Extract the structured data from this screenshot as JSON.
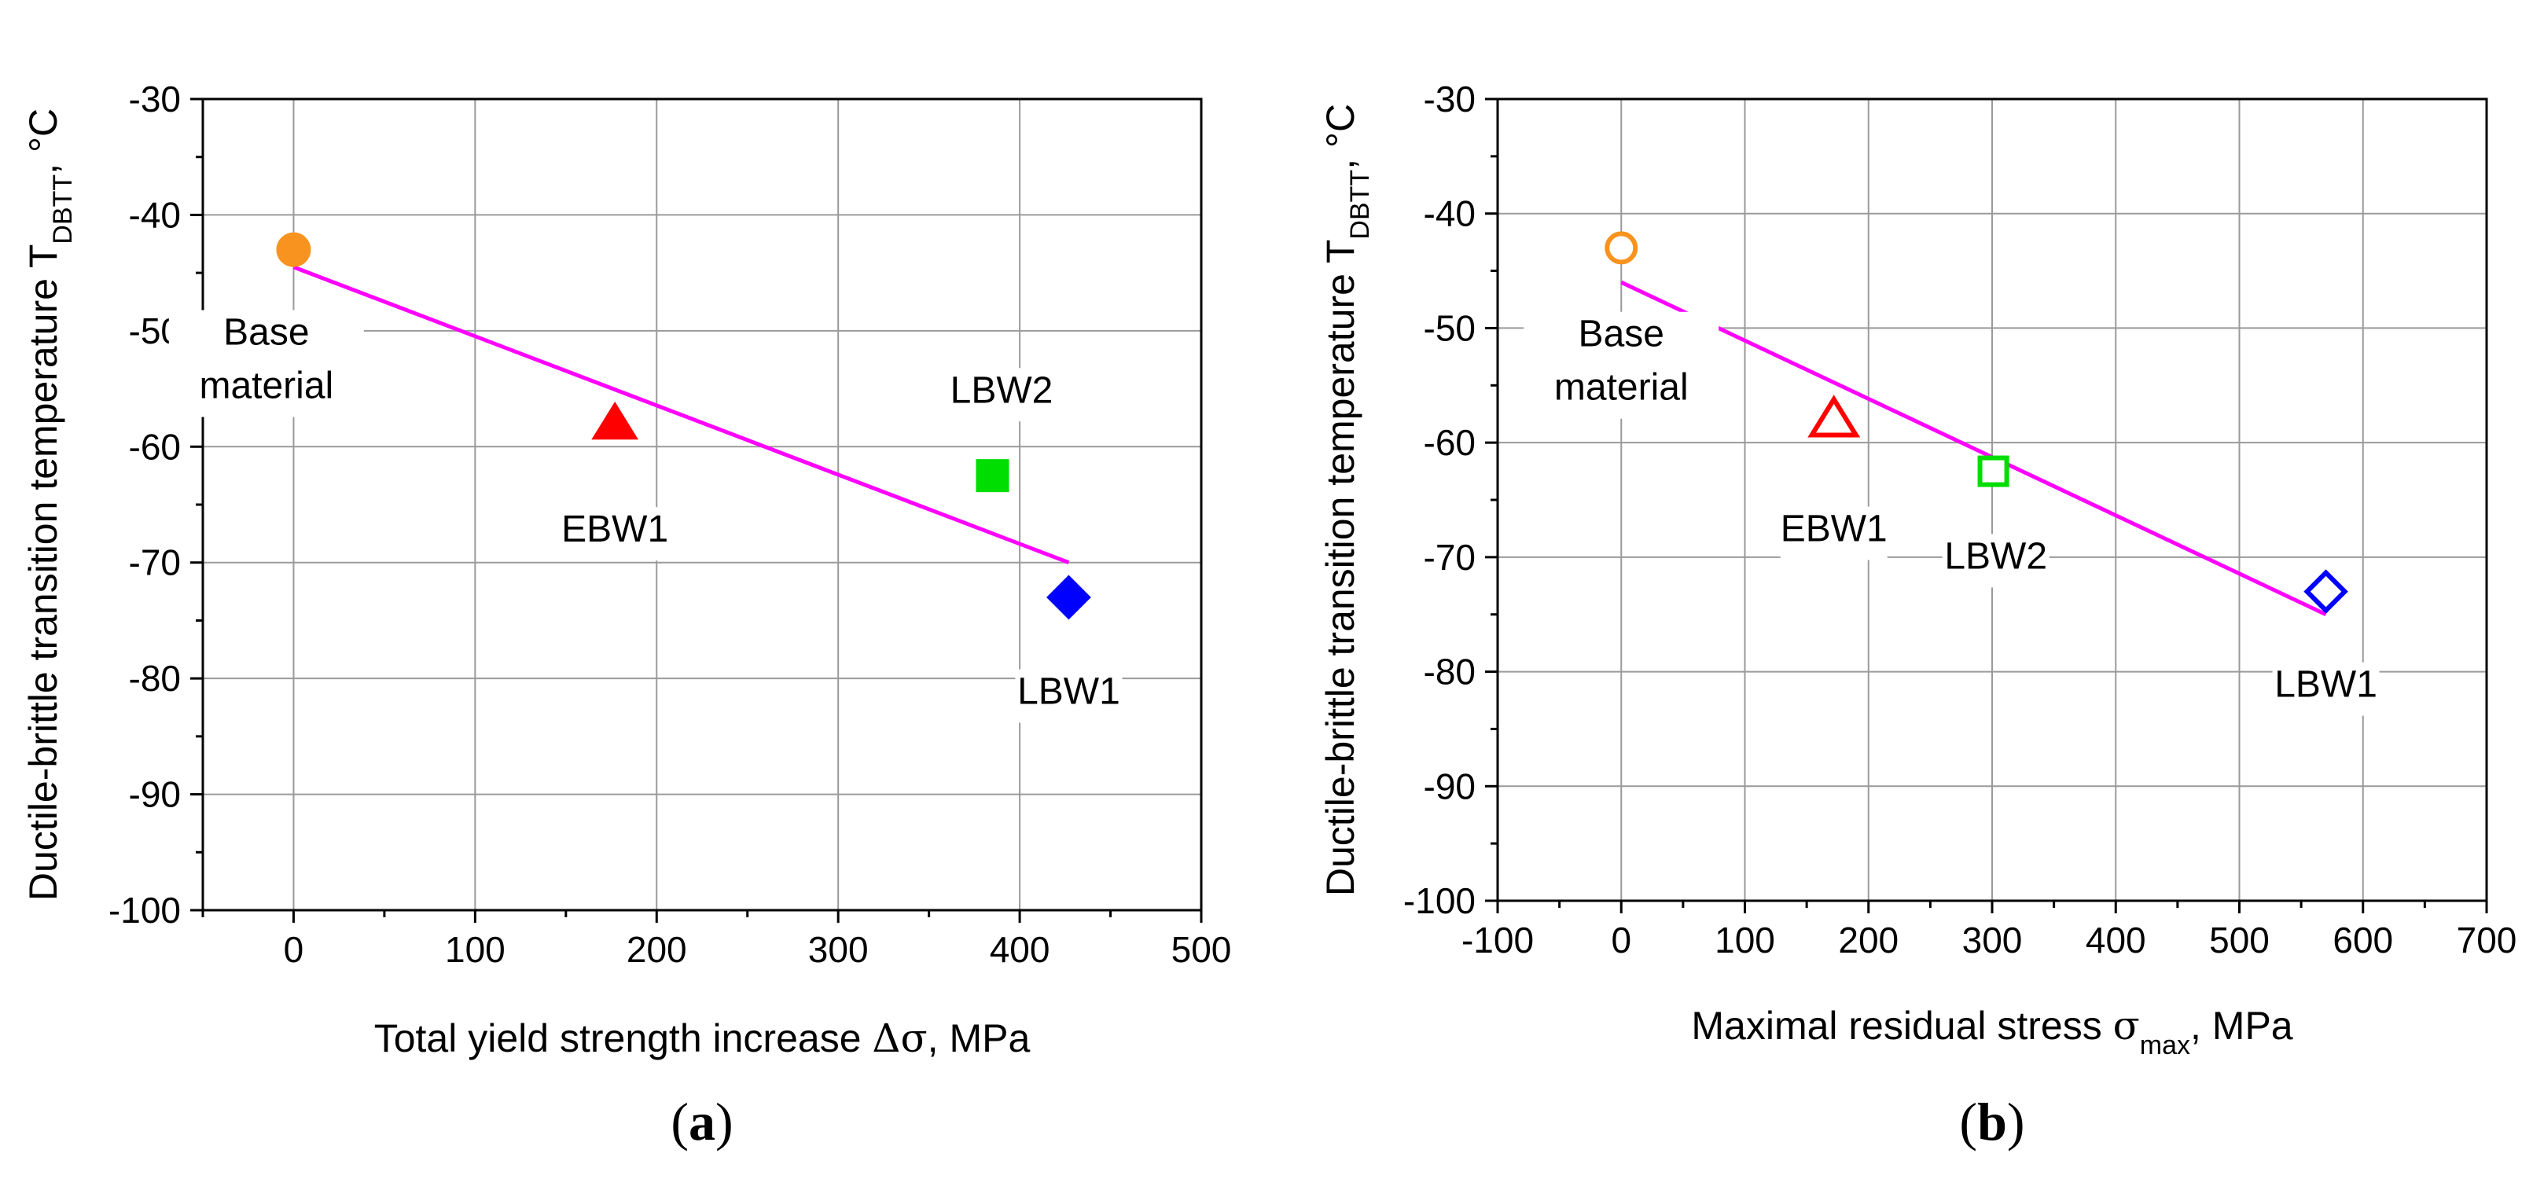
{
  "chart_data": [
    {
      "type": "scatter",
      "panel_label": "a",
      "xlabel_pre": "Total yield strength increase ",
      "xlabel_sym": "Δσ",
      "xlabel_post": ", MPa",
      "ylabel_main": "Ductile-brittle transition temperature T",
      "ylabel_sub": "DBTT",
      "ylabel_post": ", °C",
      "xlim": [
        -50,
        500
      ],
      "ylim": [
        -100,
        -30
      ],
      "xticks": [
        0,
        100,
        200,
        300,
        400,
        500
      ],
      "yticks": [
        -100,
        -90,
        -80,
        -70,
        -60,
        -50,
        -40,
        -30
      ],
      "xtick_labels": [
        "0",
        "100",
        "200",
        "300",
        "400",
        "500"
      ],
      "ytick_labels": [
        "-100",
        "-90",
        "-80",
        "-70",
        "-60",
        "-50",
        "-40",
        "-30"
      ],
      "grid": true,
      "points": [
        {
          "label": "Base material",
          "x": 0,
          "y": -43,
          "marker": "circle",
          "filled": true,
          "color": "#f7931e"
        },
        {
          "label": "EBW1",
          "x": 177,
          "y": -58,
          "marker": "triangle",
          "filled": true,
          "color": "#ff0000"
        },
        {
          "label": "LBW2",
          "x": 385,
          "y": -62.5,
          "marker": "square",
          "filled": true,
          "color": "#00dd00"
        },
        {
          "label": "LBW1",
          "x": 427,
          "y": -73,
          "marker": "diamond",
          "filled": true,
          "color": "#0000ff"
        }
      ],
      "fit_line": {
        "x": [
          0,
          427
        ],
        "y": [
          -44.5,
          -70
        ],
        "color": "#ff00ff"
      },
      "annotations": [
        {
          "lines": [
            "Base",
            "material"
          ],
          "x": -15,
          "y": -51.2
        },
        {
          "lines": [
            "EBW1"
          ],
          "x": 177,
          "y": -68.2
        },
        {
          "lines": [
            "LBW2"
          ],
          "x": 390,
          "y": -56.2
        },
        {
          "lines": [
            "LBW1"
          ],
          "x": 427,
          "y": -82.2
        }
      ]
    },
    {
      "type": "scatter",
      "panel_label": "b",
      "xlabel_pre": "Maximal residual stress  ",
      "xlabel_sym": "σ",
      "xlabel_symsub": "max",
      "xlabel_post": ", MPa",
      "ylabel_main": "Ductile-brittle transition temperature T",
      "ylabel_sub": "DBTT",
      "ylabel_post": ", °C",
      "xlim": [
        -100,
        700
      ],
      "ylim": [
        -100,
        -30
      ],
      "xticks": [
        -100,
        0,
        100,
        200,
        300,
        400,
        500,
        600,
        700
      ],
      "yticks": [
        -100,
        -90,
        -80,
        -70,
        -60,
        -50,
        -40,
        -30
      ],
      "xtick_labels": [
        "-100",
        "0",
        "100",
        "200",
        "300",
        "400",
        "500",
        "600",
        "700"
      ],
      "ytick_labels": [
        "-100",
        "-90",
        "-80",
        "-70",
        "-60",
        "-50",
        "-40",
        "-30"
      ],
      "grid": true,
      "points": [
        {
          "label": "Base material",
          "x": 0,
          "y": -43,
          "marker": "circle",
          "filled": false,
          "color": "#f7931e"
        },
        {
          "label": "EBW1",
          "x": 172,
          "y": -58,
          "marker": "triangle",
          "filled": false,
          "color": "#ff0000"
        },
        {
          "label": "LBW2",
          "x": 301,
          "y": -62.5,
          "marker": "square",
          "filled": false,
          "color": "#00dd00"
        },
        {
          "label": "LBW1",
          "x": 570,
          "y": -73,
          "marker": "diamond",
          "filled": false,
          "color": "#0000ff"
        }
      ],
      "fit_line": {
        "x": [
          0,
          570
        ],
        "y": [
          -46,
          -75
        ],
        "color": "#ff00ff"
      },
      "annotations": [
        {
          "lines": [
            "Base",
            "material"
          ],
          "x": 0,
          "y": -51.6
        },
        {
          "lines": [
            "EBW1"
          ],
          "x": 172,
          "y": -68.6
        },
        {
          "lines": [
            "LBW2"
          ],
          "x": 303,
          "y": -71.0
        },
        {
          "lines": [
            "LBW1"
          ],
          "x": 570,
          "y": -82.2
        }
      ]
    }
  ]
}
